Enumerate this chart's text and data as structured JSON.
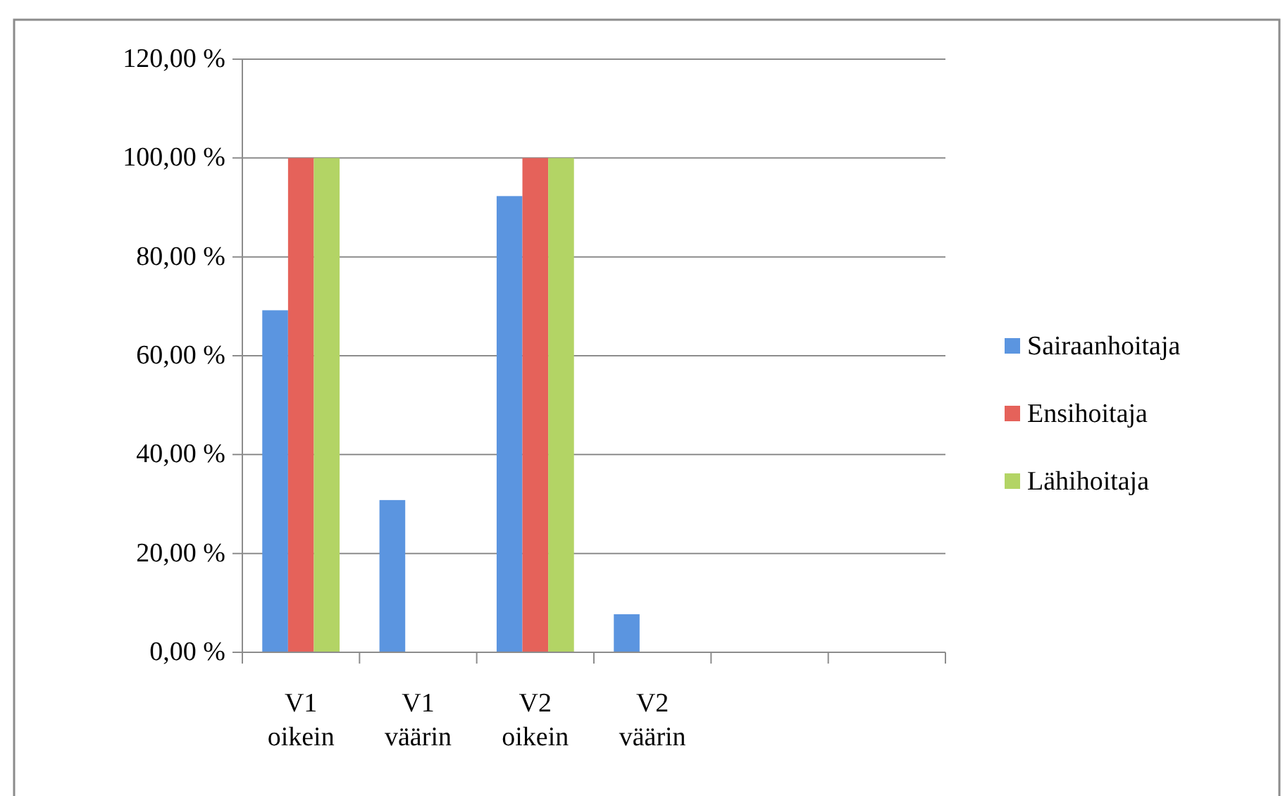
{
  "chart_data": {
    "type": "bar",
    "categories": [
      "V1 oikein",
      "V1 väärin",
      "V2 oikein",
      "V2 väärin",
      null,
      null
    ],
    "series": [
      {
        "name": "Sairaanhoitaja",
        "color": "#5b95e0",
        "values": [
          69.2,
          30.8,
          92.3,
          7.7,
          null,
          null
        ]
      },
      {
        "name": "Ensihoitaja",
        "color": "#e5625a",
        "values": [
          100,
          0,
          100,
          0,
          null,
          null
        ]
      },
      {
        "name": "Lähihoitaja",
        "color": "#b3d465",
        "values": [
          100,
          0,
          100,
          0,
          null,
          null
        ]
      }
    ],
    "ylim": [
      0,
      120
    ],
    "yticks": [
      {
        "value": 0,
        "label": "0,00 %"
      },
      {
        "value": 20,
        "label": "20,00 %"
      },
      {
        "value": 40,
        "label": "40,00 %"
      },
      {
        "value": 60,
        "label": "60,00 %"
      },
      {
        "value": 80,
        "label": "80,00 %"
      },
      {
        "value": 100,
        "label": "100,00 %"
      },
      {
        "value": 120,
        "label": "120,00 %"
      }
    ],
    "grid": "y",
    "legend": "right"
  }
}
